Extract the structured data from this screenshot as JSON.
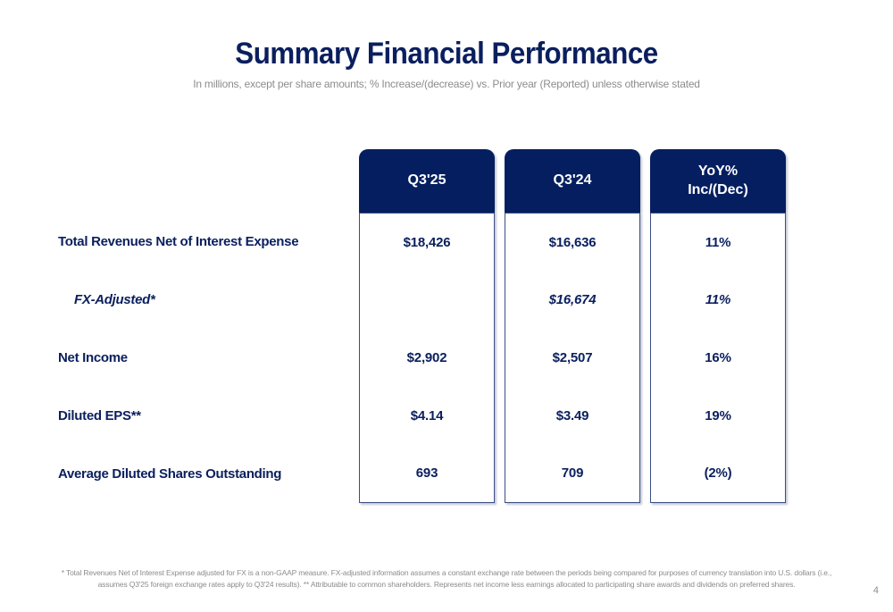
{
  "slide": {
    "title": "Summary Financial Performance",
    "subtitle": "In millions, except per share amounts; % Increase/(decrease) vs. Prior year (Reported) unless otherwise stated",
    "footnote_line1": "* Total Revenues Net of Interest Expense adjusted for FX is a non-GAAP measure. FX-adjusted information assumes a constant exchange rate between the periods being compared for purposes of currency translation into U.S. dollars (i.e.,",
    "footnote_line2": "assumes Q3'25 foreign exchange rates apply to Q3'24 results). ** Attributable to common shareholders. Represents net income less earnings allocated to participating share awards and dividends on preferred shares.",
    "page_number": "4"
  },
  "colors": {
    "navy_header": "#041e60",
    "navy_text": "#0a1f5e",
    "gray_text": "#8c8c8c",
    "box_border": "#3c4d86",
    "background": "#ffffff"
  },
  "table": {
    "columns": {
      "q325": "Q3'25",
      "q324": "Q3'24",
      "yoy": "YoY%\nInc/(Dec)"
    },
    "rows": [
      {
        "label": "Total Revenues Net of Interest Expense",
        "q325": "$18,426",
        "q324": "$16,636",
        "yoy": "11%"
      },
      {
        "label": "FX-Adjusted*",
        "q325": "",
        "q324": "$16,674",
        "yoy": "11%"
      },
      {
        "label": "Net Income",
        "q325": "$2,902",
        "q324": "$2,507",
        "yoy": "16%"
      },
      {
        "label": "Diluted EPS**",
        "q325": "$4.14",
        "q324": "$3.49",
        "yoy": "19%"
      },
      {
        "label": "Average Diluted Shares Outstanding",
        "q325": "693",
        "q324": "709",
        "yoy": "(2%)"
      }
    ]
  }
}
